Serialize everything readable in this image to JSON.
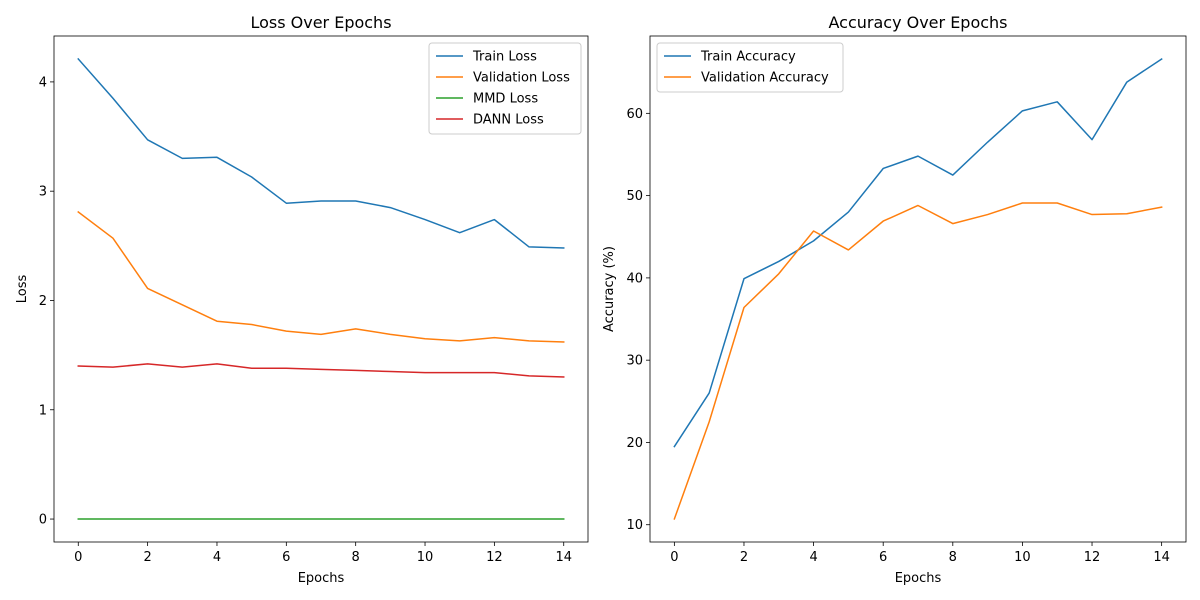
{
  "chart_data": [
    {
      "type": "line",
      "title": "Loss Over Epochs",
      "xlabel": "Epochs",
      "ylabel": "Loss",
      "xlim": [
        -0.7,
        14.7
      ],
      "ylim": [
        -0.21,
        4.42
      ],
      "xticks": [
        0,
        2,
        4,
        6,
        8,
        10,
        12,
        14
      ],
      "yticks": [
        0,
        1,
        2,
        3,
        4
      ],
      "grid": false,
      "legend_position": "upper right",
      "x": [
        0,
        1,
        2,
        3,
        4,
        5,
        6,
        7,
        8,
        9,
        10,
        11,
        12,
        13,
        14
      ],
      "series": [
        {
          "name": "Train Loss",
          "color": "#1f77b4",
          "values": [
            4.21,
            3.85,
            3.47,
            3.3,
            3.31,
            3.13,
            2.89,
            2.91,
            2.91,
            2.85,
            2.74,
            2.62,
            2.74,
            2.49,
            2.48
          ]
        },
        {
          "name": "Validation Loss",
          "color": "#ff7f0e",
          "values": [
            2.81,
            2.57,
            2.11,
            1.96,
            1.81,
            1.78,
            1.72,
            1.69,
            1.74,
            1.69,
            1.65,
            1.63,
            1.66,
            1.63,
            1.62
          ]
        },
        {
          "name": "MMD Loss",
          "color": "#2ca02c",
          "values": [
            0,
            0,
            0,
            0,
            0,
            0,
            0,
            0,
            0,
            0,
            0,
            0,
            0,
            0,
            0
          ]
        },
        {
          "name": "DANN Loss",
          "color": "#d62728",
          "values": [
            1.4,
            1.39,
            1.42,
            1.39,
            1.42,
            1.38,
            1.38,
            1.37,
            1.36,
            1.35,
            1.34,
            1.34,
            1.34,
            1.31,
            1.3
          ]
        }
      ]
    },
    {
      "type": "line",
      "title": "Accuracy Over Epochs",
      "xlabel": "Epochs",
      "ylabel": "Accuracy (%)",
      "xlim": [
        -0.7,
        14.7
      ],
      "ylim": [
        7.9,
        69.4
      ],
      "xticks": [
        0,
        2,
        4,
        6,
        8,
        10,
        12,
        14
      ],
      "yticks": [
        10,
        20,
        30,
        40,
        50,
        60
      ],
      "grid": false,
      "legend_position": "upper left",
      "x": [
        0,
        1,
        2,
        3,
        4,
        5,
        6,
        7,
        8,
        9,
        10,
        11,
        12,
        13,
        14
      ],
      "series": [
        {
          "name": "Train Accuracy",
          "color": "#1f77b4",
          "values": [
            19.5,
            26.0,
            39.9,
            42.0,
            44.5,
            48.0,
            53.3,
            54.8,
            52.5,
            56.5,
            60.3,
            61.4,
            56.8,
            63.8,
            66.6
          ]
        },
        {
          "name": "Validation Accuracy",
          "color": "#ff7f0e",
          "values": [
            10.7,
            22.5,
            36.4,
            40.5,
            45.7,
            43.4,
            46.9,
            48.8,
            46.6,
            47.7,
            49.1,
            49.1,
            47.7,
            47.8,
            48.6
          ]
        }
      ]
    }
  ]
}
